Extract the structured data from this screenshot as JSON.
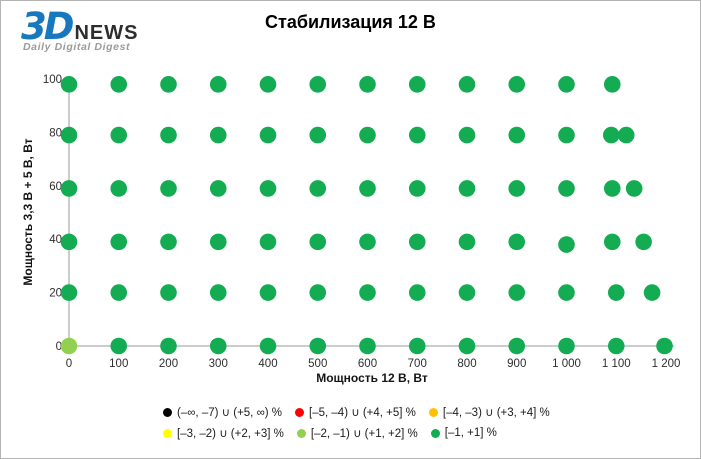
{
  "logo": {
    "part1": "3D",
    "part2": "NEWS",
    "tagline": "Daily Digital Digest",
    "brand_color": "#1878BE"
  },
  "chart_data": {
    "type": "scatter",
    "title": "Стабилизация 12 В",
    "xlabel": "Мощность  12 В, Вт",
    "ylabel": "Мощность  3,3 В + 5 В, Вт",
    "xlim": [
      0,
      1200
    ],
    "ylim": [
      0,
      100
    ],
    "grid": false,
    "legend_position": "bottom",
    "x_ticks": [
      {
        "v": 0,
        "label": "0"
      },
      {
        "v": 100,
        "label": "100"
      },
      {
        "v": 200,
        "label": "200"
      },
      {
        "v": 300,
        "label": "300"
      },
      {
        "v": 400,
        "label": "400"
      },
      {
        "v": 500,
        "label": "500"
      },
      {
        "v": 600,
        "label": "600"
      },
      {
        "v": 700,
        "label": "700"
      },
      {
        "v": 800,
        "label": "800"
      },
      {
        "v": 900,
        "label": "900"
      },
      {
        "v": 1000,
        "label": "1 000"
      },
      {
        "v": 1100,
        "label": "1 100"
      },
      {
        "v": 1200,
        "label": "1 200"
      }
    ],
    "y_ticks": [
      {
        "v": 0,
        "label": "0"
      },
      {
        "v": 20,
        "label": "20"
      },
      {
        "v": 40,
        "label": "40"
      },
      {
        "v": 60,
        "label": "60"
      },
      {
        "v": 80,
        "label": "80"
      },
      {
        "v": 100,
        "label": "100"
      }
    ],
    "series": [
      {
        "name": "[–1, +1] %",
        "color": "#13AC52",
        "points": [
          [
            0,
            98
          ],
          [
            100,
            98
          ],
          [
            200,
            98
          ],
          [
            300,
            98
          ],
          [
            400,
            98
          ],
          [
            500,
            98
          ],
          [
            600,
            98
          ],
          [
            700,
            98
          ],
          [
            800,
            98
          ],
          [
            900,
            98
          ],
          [
            1000,
            98
          ],
          [
            1092,
            98
          ],
          [
            0,
            79
          ],
          [
            100,
            79
          ],
          [
            200,
            79
          ],
          [
            300,
            79
          ],
          [
            400,
            79
          ],
          [
            500,
            79
          ],
          [
            600,
            79
          ],
          [
            700,
            79
          ],
          [
            800,
            79
          ],
          [
            900,
            79
          ],
          [
            1000,
            79
          ],
          [
            1090,
            79
          ],
          [
            1120,
            79
          ],
          [
            0,
            59
          ],
          [
            100,
            59
          ],
          [
            200,
            59
          ],
          [
            300,
            59
          ],
          [
            400,
            59
          ],
          [
            500,
            59
          ],
          [
            600,
            59
          ],
          [
            700,
            59
          ],
          [
            800,
            59
          ],
          [
            900,
            59
          ],
          [
            1000,
            59
          ],
          [
            1092,
            59
          ],
          [
            1136,
            59
          ],
          [
            0,
            39
          ],
          [
            100,
            39
          ],
          [
            200,
            39
          ],
          [
            300,
            39
          ],
          [
            400,
            39
          ],
          [
            500,
            39
          ],
          [
            600,
            39
          ],
          [
            700,
            39
          ],
          [
            800,
            39
          ],
          [
            900,
            39
          ],
          [
            1000,
            38
          ],
          [
            1092,
            39
          ],
          [
            1155,
            39
          ],
          [
            0,
            20
          ],
          [
            100,
            20
          ],
          [
            200,
            20
          ],
          [
            300,
            20
          ],
          [
            400,
            20
          ],
          [
            500,
            20
          ],
          [
            600,
            20
          ],
          [
            700,
            20
          ],
          [
            800,
            20
          ],
          [
            900,
            20
          ],
          [
            1000,
            20
          ],
          [
            1100,
            20
          ],
          [
            1172,
            20
          ],
          [
            100,
            0
          ],
          [
            200,
            0
          ],
          [
            300,
            0
          ],
          [
            400,
            0
          ],
          [
            500,
            0
          ],
          [
            600,
            0
          ],
          [
            700,
            0
          ],
          [
            800,
            0
          ],
          [
            900,
            0
          ],
          [
            1000,
            0
          ],
          [
            1100,
            0
          ],
          [
            1197,
            0
          ]
        ]
      },
      {
        "name": "[–2, –1) ∪ (+1, +2] %",
        "color": "#92D050",
        "points": [
          [
            0,
            0
          ]
        ]
      }
    ]
  },
  "legend": {
    "rows": [
      [
        {
          "color": "#000000",
          "label": "(–∞, –7) ∪ (+5, ∞) %"
        },
        {
          "color": "#FF0000",
          "label": "[–5, –4) ∪ (+4, +5] %"
        },
        {
          "color": "#FFC000",
          "label": "[–4, –3) ∪ (+3, +4] %"
        }
      ],
      [
        {
          "color": "#FFFF00",
          "label": "[–3, –2) ∪ (+2, +3] %"
        },
        {
          "color": "#92D050",
          "label": "[–2, –1) ∪ (+1, +2] %"
        },
        {
          "color": "#13AC52",
          "label": "[–1, +1] %"
        }
      ]
    ]
  }
}
